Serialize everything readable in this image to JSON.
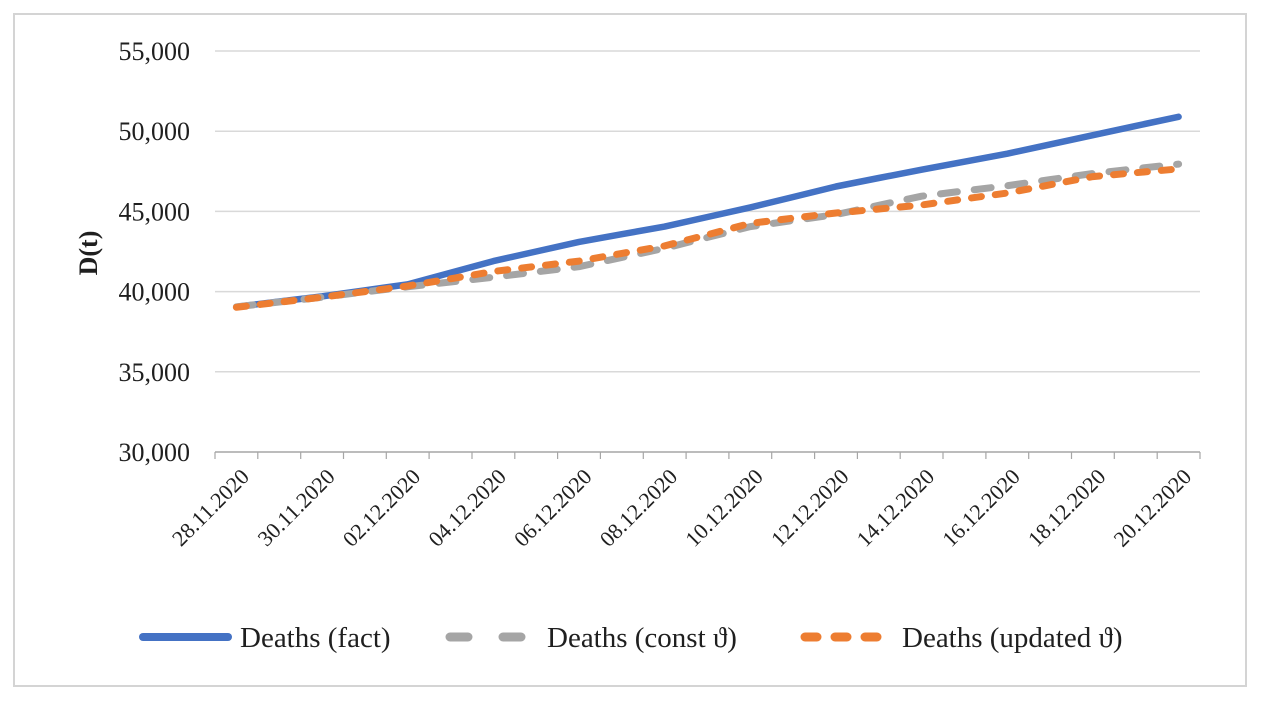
{
  "figure": {
    "kind": "scientific line chart (Excel style) of COVID-19 cumulative deaths, fact vs two model variants",
    "border_color": "#d4d4d4",
    "background_color": "#ffffff"
  },
  "colors": {
    "series_fact": "#4472C4",
    "series_const_theta": "#A5A5A5",
    "series_updated_theta": "#ED7D31",
    "gridline": "#D9D9D9",
    "axis_line": "#A6A6A6",
    "text": "#1f1f1f"
  },
  "chart_data": {
    "type": "line",
    "title": "",
    "xlabel": "",
    "ylabel": "D(t)",
    "ylim": [
      30000,
      55000
    ],
    "ytick_step": 5000,
    "yticks": [
      30000,
      35000,
      40000,
      45000,
      50000,
      55000
    ],
    "ytick_labels": [
      "30,000",
      "35,000",
      "40,000",
      "45,000",
      "50,000",
      "55,000"
    ],
    "grid": "horizontal gridlines on",
    "legend_position": "bottom",
    "x": [
      "28.11.2020",
      "29.11.2020",
      "30.11.2020",
      "01.12.2020",
      "02.12.2020",
      "03.12.2020",
      "04.12.2020",
      "05.12.2020",
      "06.12.2020",
      "07.12.2020",
      "08.12.2020",
      "09.12.2020",
      "10.12.2020",
      "11.12.2020",
      "12.12.2020",
      "13.12.2020",
      "14.12.2020",
      "15.12.2020",
      "16.12.2020",
      "17.12.2020",
      "18.12.2020",
      "19.12.2020",
      "20.12.2020"
    ],
    "xtick_label_every": 2,
    "xtick_labels": [
      "28.11.2020",
      "30.11.2020",
      "02.12.2020",
      "04.12.2020",
      "06.12.2020",
      "08.12.2020",
      "10.12.2020",
      "12.12.2020",
      "14.12.2020",
      "16.12.2020",
      "18.12.2020",
      "20.12.2020"
    ],
    "series": [
      {
        "name": "Deaths (fact)",
        "color": "#4472C4",
        "line_style": "solid",
        "values": [
          39050,
          39380,
          39700,
          40080,
          40450,
          41180,
          41900,
          42500,
          43100,
          43580,
          44050,
          44650,
          45250,
          45900,
          46550,
          47080,
          47600,
          48100,
          48600,
          49180,
          49750,
          50330,
          50900
        ]
      },
      {
        "name": "Deaths (const ϑ)",
        "color": "#A5A5A5",
        "line_style": "long-dash",
        "values": [
          39050,
          39350,
          39650,
          39980,
          40300,
          40600,
          40900,
          41230,
          41550,
          42130,
          42700,
          43380,
          44050,
          44430,
          44800,
          45380,
          45950,
          46280,
          46600,
          46980,
          47360,
          47660,
          47950
        ]
      },
      {
        "name": "Deaths (updated ϑ)",
        "color": "#ED7D31",
        "line_style": "short-dash",
        "values": [
          39020,
          39340,
          39650,
          40000,
          40350,
          40800,
          41250,
          41580,
          41900,
          42380,
          42850,
          43550,
          44250,
          44580,
          44900,
          45150,
          45400,
          45780,
          46150,
          46660,
          47170,
          47410,
          47650
        ]
      }
    ]
  }
}
